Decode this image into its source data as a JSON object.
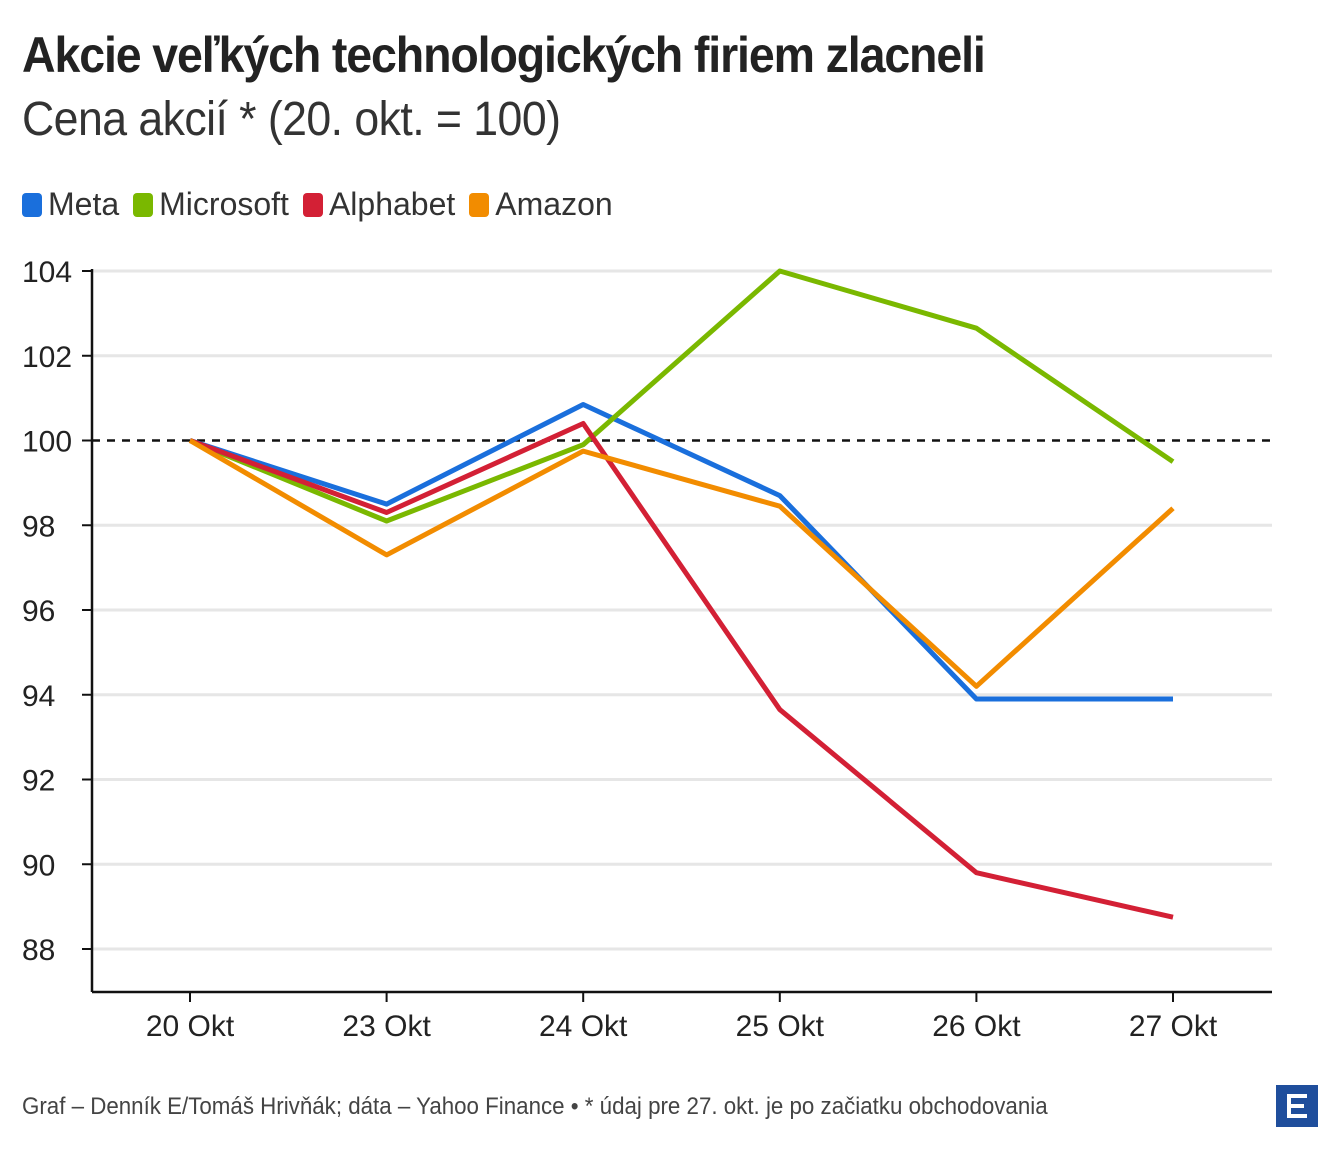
{
  "header": {
    "title": "Akcie veľkých technologických firiem zlacneli",
    "subtitle": "Cena akcií * (20. okt. = 100)"
  },
  "footer": {
    "source": "Graf – Denník E/Tomáš Hrivňák; dáta – Yahoo Finance • * údaj pre 27. okt. je po začiatku obchodovania"
  },
  "logo": {
    "icon": "denník-e-logo",
    "color": "#1f4e9c"
  },
  "chart_data": {
    "type": "line",
    "categories": [
      "20 Okt",
      "23 Okt",
      "24 Okt",
      "25 Okt",
      "26 Okt",
      "27 Okt"
    ],
    "ylim": [
      87,
      104
    ],
    "yticks": [
      88,
      90,
      92,
      94,
      96,
      98,
      100,
      102,
      104
    ],
    "reference_line": 100,
    "grid": true,
    "legend_position": "top-left",
    "series": [
      {
        "name": "Meta",
        "color": "#1a6fdc",
        "values": [
          100,
          98.5,
          100.85,
          98.7,
          93.9,
          93.9
        ]
      },
      {
        "name": "Microsoft",
        "color": "#7ab800",
        "values": [
          100,
          98.1,
          99.9,
          104.0,
          102.65,
          99.5
        ]
      },
      {
        "name": "Alphabet",
        "color": "#d32035",
        "values": [
          100,
          98.3,
          100.4,
          93.65,
          89.8,
          88.75
        ]
      },
      {
        "name": "Amazon",
        "color": "#f28c00",
        "values": [
          100,
          97.3,
          99.75,
          98.45,
          94.2,
          98.4
        ]
      }
    ]
  }
}
